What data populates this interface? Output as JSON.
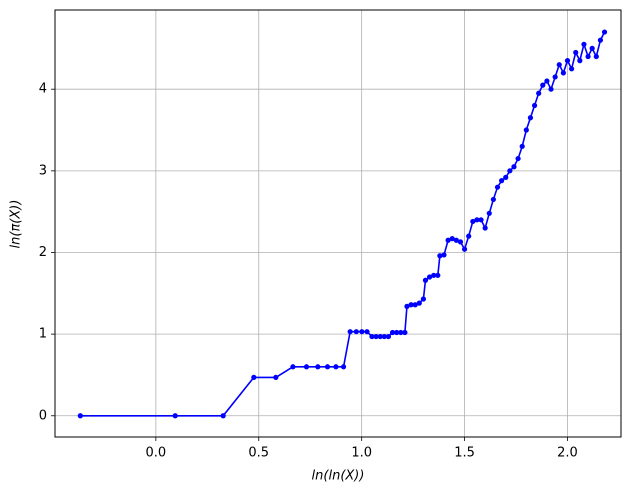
{
  "chart_data": {
    "type": "line",
    "x_label": "ln(ln(X))",
    "y_label": "ln(π(X))",
    "x": [
      -0.367,
      0.094,
      0.327,
      0.476,
      0.583,
      0.666,
      0.732,
      0.787,
      0.834,
      0.875,
      0.912,
      0.944,
      0.974,
      1.001,
      1.026,
      1.05,
      1.07,
      1.09,
      1.11,
      1.13,
      1.15,
      1.17,
      1.19,
      1.21,
      1.22,
      1.24,
      1.26,
      1.28,
      1.3,
      1.31,
      1.33,
      1.35,
      1.37,
      1.38,
      1.4,
      1.42,
      1.44,
      1.46,
      1.48,
      1.5,
      1.52,
      1.54,
      1.56,
      1.58,
      1.6,
      1.62,
      1.64,
      1.66,
      1.68,
      1.7,
      1.72,
      1.74,
      1.76,
      1.78,
      1.8,
      1.82,
      1.84,
      1.86,
      1.88,
      1.9,
      1.92,
      1.94,
      1.96,
      1.98,
      2.0,
      2.02,
      2.04,
      2.06,
      2.08,
      2.1,
      2.12,
      2.14,
      2.16,
      2.18
    ],
    "series": [
      {
        "color": "#0000ff",
        "values": [
          0,
          0,
          0,
          0.47,
          0.47,
          0.6,
          0.6,
          0.6,
          0.6,
          0.6,
          0.6,
          1.03,
          1.03,
          1.03,
          1.03,
          0.97,
          0.97,
          0.97,
          0.97,
          0.97,
          1.02,
          1.02,
          1.02,
          1.02,
          1.34,
          1.36,
          1.36,
          1.38,
          1.43,
          1.66,
          1.7,
          1.72,
          1.72,
          1.96,
          1.97,
          2.15,
          2.17,
          2.15,
          2.13,
          2.04,
          2.2,
          2.38,
          2.4,
          2.4,
          2.3,
          2.48,
          2.65,
          2.8,
          2.88,
          2.92,
          3.0,
          3.05,
          3.15,
          3.3,
          3.5,
          3.65,
          3.8,
          3.95,
          4.05,
          4.1,
          4.0,
          4.15,
          4.3,
          4.2,
          4.35,
          4.25,
          4.45,
          4.35,
          4.55,
          4.4,
          4.5,
          4.4,
          4.6,
          4.7
        ]
      }
    ],
    "xlim": [
      -0.49,
      2.26
    ],
    "ylim": [
      -0.26,
      4.97
    ],
    "xticks": [
      {
        "value": 0,
        "label": "0.0"
      },
      {
        "value": 0.5,
        "label": "0.5"
      },
      {
        "value": 1,
        "label": "1.0"
      },
      {
        "value": 1.5,
        "label": "1.5"
      },
      {
        "value": 2,
        "label": "2.0"
      }
    ],
    "yticks": [
      0,
      1,
      2,
      3,
      4
    ],
    "grid": true
  }
}
